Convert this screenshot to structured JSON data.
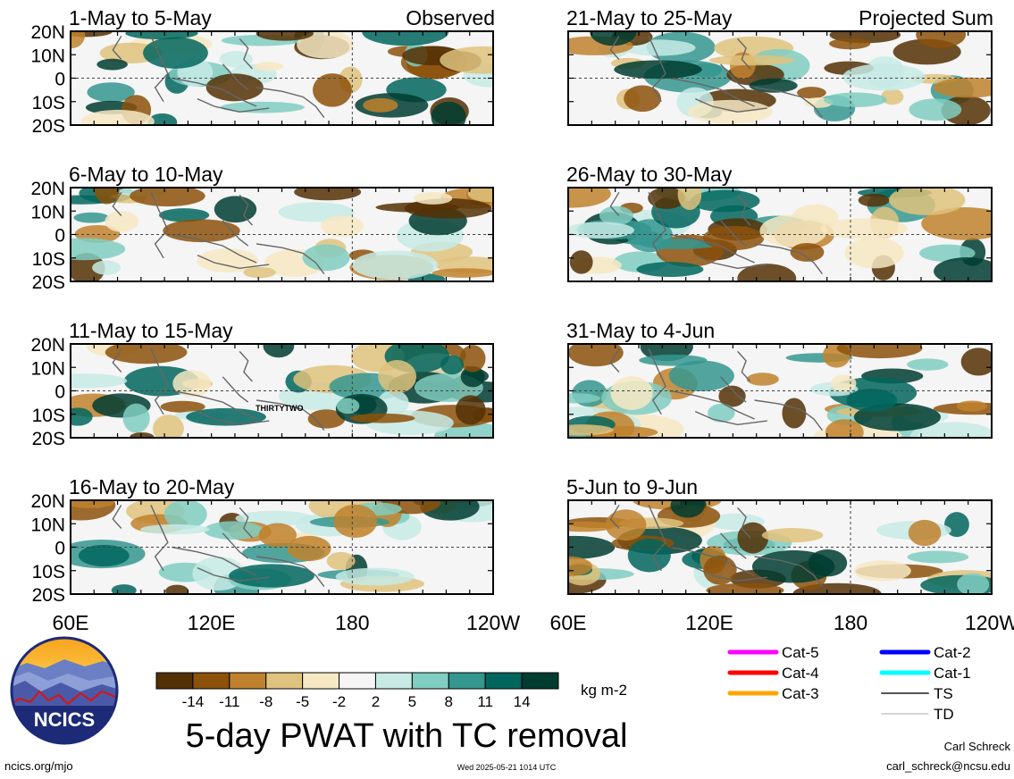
{
  "chart_data": {
    "type": "heatmap",
    "title": "5-day PWAT with TC removal",
    "units": "kg m-2",
    "domain_lon": [
      "60E",
      "120E",
      "180",
      "120W"
    ],
    "domain_lat": [
      "20N",
      "10N",
      "0",
      "10S",
      "20S"
    ],
    "xticks": [
      "60E",
      "120E",
      "180",
      "120W"
    ],
    "xticks_right": [
      "60E",
      "120E",
      "180",
      "120W"
    ],
    "yticks": [
      "20N",
      "10N",
      "0",
      "10S",
      "20S"
    ],
    "observed_label": "Observed",
    "projected_label": "Projected Sum",
    "panels_observed": [
      {
        "period": "1-May to 5-May"
      },
      {
        "period": "6-May to 10-May"
      },
      {
        "period": "11-May to 15-May"
      },
      {
        "period": "16-May to 20-May"
      }
    ],
    "panels_projected": [
      {
        "period": "21-May to 25-May"
      },
      {
        "period": "26-May to 30-May"
      },
      {
        "period": "31-May to 4-Jun"
      },
      {
        "period": "5-Jun to 9-Jun"
      }
    ],
    "storm_annotation": "THIRTYTWO",
    "colorbar": {
      "boundaries": [
        "-14",
        "-11",
        "-8",
        "-5",
        "-2",
        "2",
        "5",
        "8",
        "11",
        "14"
      ],
      "colors": [
        "#543005",
        "#8c510a",
        "#bf812d",
        "#dfc27d",
        "#f6e8c3",
        "#f5f5f5",
        "#c7eae5",
        "#80cdc1",
        "#35978f",
        "#01665e",
        "#003c30"
      ]
    },
    "tc_legend": [
      {
        "label": "Cat-5",
        "color": "#ff00ff"
      },
      {
        "label": "Cat-4",
        "color": "#ff0000"
      },
      {
        "label": "Cat-3",
        "color": "#ffa500"
      },
      {
        "label": "Cat-2",
        "color": "#0000ff"
      },
      {
        "label": "Cat-1",
        "color": "#00ffff"
      },
      {
        "label": "TS",
        "color": "#555555"
      },
      {
        "label": "TD",
        "color": "#aaaaaa"
      }
    ]
  },
  "logo_text": "NCICS",
  "footer": {
    "site": "ncics.org/mjo",
    "timestamp": "Wed 2025-05-21 1014 UTC",
    "author": "Carl Schreck",
    "email": "carl_schreck@ncsu.edu"
  }
}
